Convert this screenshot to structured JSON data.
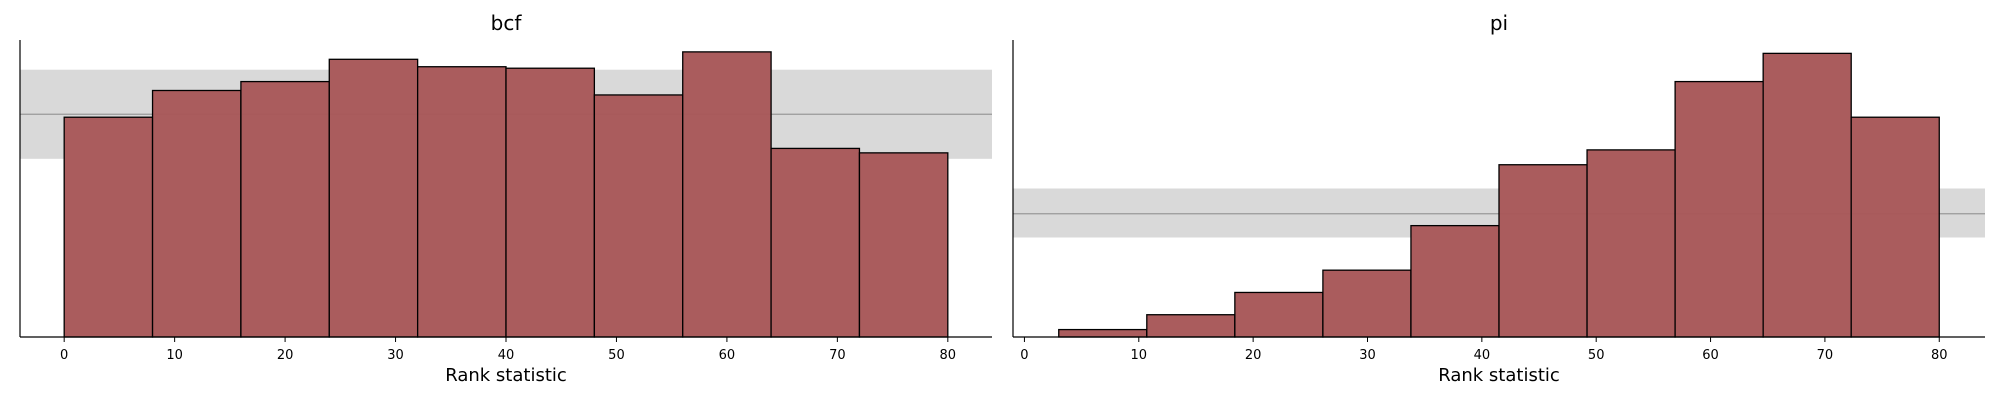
{
  "colors": {
    "bar_fill": "#a8595a",
    "bar_edge": "#000000",
    "band_fill": "#d9d9d9",
    "ref_line": "#999999",
    "axis": "#000000"
  },
  "chart_data": [
    {
      "type": "bar",
      "title": "bcf",
      "xlabel": "Rank statistic",
      "ylabel": "",
      "xlim": [
        -4,
        84
      ],
      "ylim": [
        0,
        1.0
      ],
      "x_ticks": [
        0,
        10,
        20,
        30,
        40,
        50,
        60,
        70,
        80
      ],
      "bin_edges": [
        0,
        8,
        16,
        24,
        32,
        40,
        48,
        56,
        64,
        72,
        80
      ],
      "values": [
        0.74,
        0.83,
        0.86,
        0.935,
        0.91,
        0.905,
        0.815,
        0.96,
        0.635,
        0.62
      ],
      "uniform_band": {
        "low": 0.6,
        "mid": 0.75,
        "high": 0.9
      },
      "grid": false
    },
    {
      "type": "bar",
      "title": "pi",
      "xlabel": "Rank statistic",
      "ylabel": "",
      "xlim": [
        -1,
        84
      ],
      "ylim": [
        0,
        1.0
      ],
      "x_ticks": [
        0,
        10,
        20,
        30,
        40,
        50,
        60,
        70,
        80
      ],
      "bin_edges": [
        3,
        10.7,
        18.4,
        26.1,
        33.8,
        41.5,
        49.2,
        56.9,
        64.6,
        72.3,
        80
      ],
      "values": [
        0.025,
        0.075,
        0.15,
        0.225,
        0.375,
        0.58,
        0.63,
        0.86,
        0.955,
        0.74
      ],
      "uniform_band": {
        "low": 0.335,
        "mid": 0.415,
        "high": 0.5
      },
      "grid": false
    }
  ]
}
